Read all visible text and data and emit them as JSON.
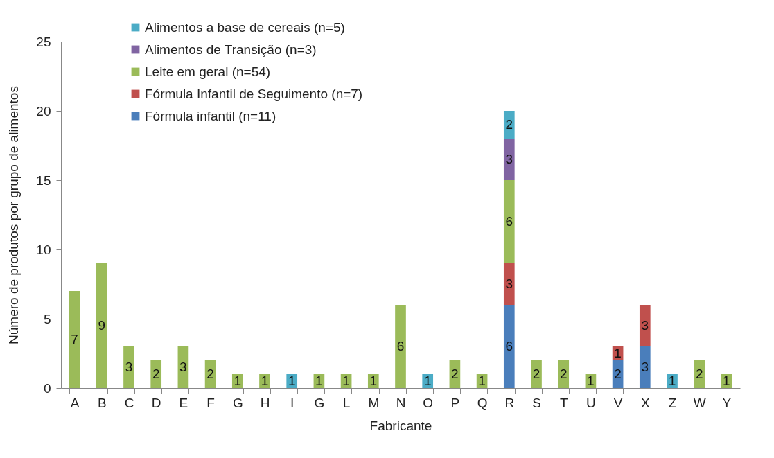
{
  "chart_data": {
    "type": "bar",
    "stacked": true,
    "xlabel": "Fabricante",
    "ylabel": "Número de produtos por grupo de alimentos",
    "categories": [
      "A",
      "B",
      "C",
      "D",
      "E",
      "F",
      "G",
      "H",
      "I",
      "G",
      "L",
      "M",
      "N",
      "O",
      "P",
      "Q",
      "R",
      "S",
      "T",
      "U",
      "V",
      "X",
      "Z",
      "W",
      "Y"
    ],
    "series": [
      {
        "name": "Fórmula infantil (n=11)",
        "color": "#4a7ebb",
        "values": [
          null,
          null,
          null,
          null,
          null,
          null,
          null,
          null,
          null,
          null,
          null,
          null,
          null,
          null,
          null,
          null,
          6,
          null,
          null,
          null,
          2,
          3,
          null,
          null,
          null
        ]
      },
      {
        "name": "Fórmula Infantil de Seguimento (n=7)",
        "color": "#c0504d",
        "values": [
          null,
          null,
          null,
          null,
          null,
          null,
          null,
          null,
          null,
          null,
          null,
          null,
          null,
          null,
          null,
          null,
          3,
          null,
          null,
          null,
          1,
          3,
          null,
          null,
          null
        ]
      },
      {
        "name": "Leite em geral (n=54)",
        "color": "#9bbb59",
        "values": [
          7,
          9,
          3,
          2,
          3,
          2,
          1,
          1,
          null,
          1,
          1,
          1,
          6,
          null,
          2,
          1,
          6,
          2,
          2,
          1,
          null,
          null,
          null,
          2,
          1
        ]
      },
      {
        "name": "Alimentos de Transição (n=3)",
        "color": "#8064a2",
        "values": [
          null,
          null,
          null,
          null,
          null,
          null,
          null,
          null,
          null,
          null,
          null,
          null,
          null,
          null,
          null,
          null,
          3,
          null,
          null,
          null,
          null,
          null,
          null,
          null,
          null
        ]
      },
      {
        "name": "Alimentos a base de cereais (n=5)",
        "color": "#4bacc6",
        "values": [
          null,
          null,
          null,
          null,
          null,
          null,
          null,
          null,
          1,
          null,
          null,
          null,
          null,
          1,
          null,
          null,
          2,
          null,
          null,
          null,
          null,
          null,
          1,
          null,
          null
        ]
      }
    ],
    "ylim": [
      0,
      25
    ],
    "yticks": [
      0,
      5,
      10,
      15,
      20,
      25
    ],
    "grid": false,
    "legend": "top",
    "data_labels": true
  }
}
